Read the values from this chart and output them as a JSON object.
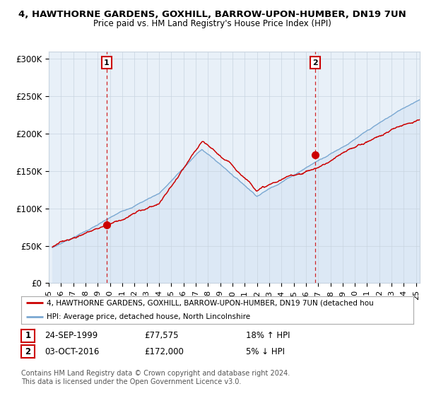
{
  "title_line1": "4, HAWTHORNE GARDENS, GOXHILL, BARROW-UPON-HUMBER, DN19 7UN",
  "title_line2": "Price paid vs. HM Land Registry's House Price Index (HPI)",
  "ylabel_ticks": [
    "£0",
    "£50K",
    "£100K",
    "£150K",
    "£200K",
    "£250K",
    "£300K"
  ],
  "ytick_values": [
    0,
    50000,
    100000,
    150000,
    200000,
    250000,
    300000
  ],
  "ylim": [
    0,
    310000
  ],
  "xlim_start": 1995.3,
  "xlim_end": 2025.3,
  "sale1_date": "24-SEP-1999",
  "sale1_price": "£77,575",
  "sale1_hpi_pct": "18% ↑ HPI",
  "sale1_x": 1999.73,
  "sale1_y": 77575,
  "sale2_date": "03-OCT-2016",
  "sale2_price": "£172,000",
  "sale2_hpi_pct": "5% ↓ HPI",
  "sale2_x": 2016.76,
  "sale2_y": 172000,
  "legend_line1": "4, HAWTHORNE GARDENS, GOXHILL, BARROW-UPON-HUMBER, DN19 7UN (detached hou",
  "legend_line2": "HPI: Average price, detached house, North Lincolnshire",
  "footer_line1": "Contains HM Land Registry data © Crown copyright and database right 2024.",
  "footer_line2": "This data is licensed under the Open Government Licence v3.0.",
  "red_color": "#cc0000",
  "blue_color": "#7aa8d2",
  "blue_fill": "#dce8f5",
  "background_color": "#f0f4fa",
  "grid_color": "#c8d4e0",
  "plot_bg": "#e8f0f8"
}
